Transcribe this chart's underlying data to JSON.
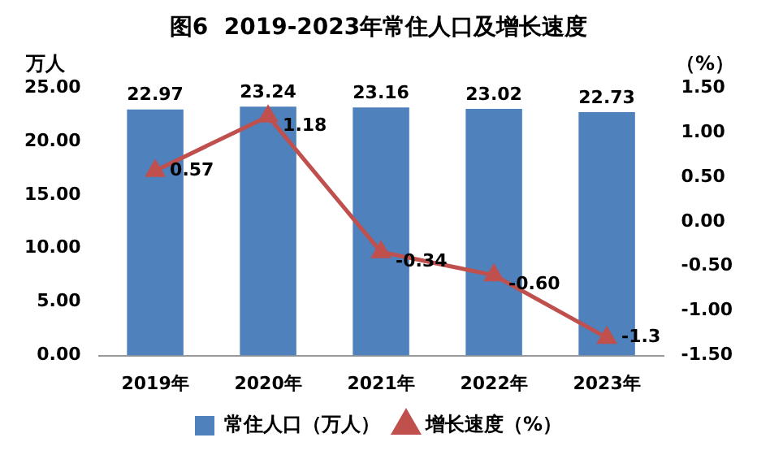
{
  "chart_data": {
    "type": "bar",
    "title": "图6  2019-2023年常住人口及增长速度",
    "ylabel": "万人",
    "y2label": "（%）",
    "categories": [
      "2019年",
      "2020年",
      "2021年",
      "2022年",
      "2023年"
    ],
    "series": [
      {
        "name": "常住人口（万人）",
        "color": "#4f81bd",
        "values": [
          22.97,
          23.24,
          23.16,
          23.02,
          22.73
        ],
        "value_labels": [
          "22.97",
          "23.24",
          "23.16",
          "23.02",
          "22.73"
        ]
      },
      {
        "name": "增长速度（%）",
        "type": "line",
        "axis": "y2",
        "color": "#c0504d",
        "values": [
          0.57,
          1.18,
          -0.34,
          -0.6,
          -1.3
        ],
        "value_labels": [
          "0.57",
          "1.18",
          "-0.34",
          "-0.60",
          "-1.3"
        ]
      }
    ],
    "ylim": [
      0,
      25
    ],
    "yticks": [
      {
        "value": 0,
        "label": "0.00"
      },
      {
        "value": 5,
        "label": "5.00"
      },
      {
        "value": 10,
        "label": "10.00"
      },
      {
        "value": 15,
        "label": "15.00"
      },
      {
        "value": 20,
        "label": "20.00"
      },
      {
        "value": 25,
        "label": "25.00"
      }
    ],
    "y2lim": [
      -1.5,
      1.5
    ],
    "y2ticks": [
      {
        "value": -1.5,
        "label": "-1.50"
      },
      {
        "value": -1,
        "label": "-1.00"
      },
      {
        "value": -0.5,
        "label": "-0.50"
      },
      {
        "value": 0,
        "label": "0.00"
      },
      {
        "value": 0.5,
        "label": "0.50"
      },
      {
        "value": 1,
        "label": "1.00"
      },
      {
        "value": 1.5,
        "label": "1.50"
      }
    ],
    "grid": false,
    "legend": "bottom",
    "marker": "triangle",
    "line_style": "solid"
  }
}
